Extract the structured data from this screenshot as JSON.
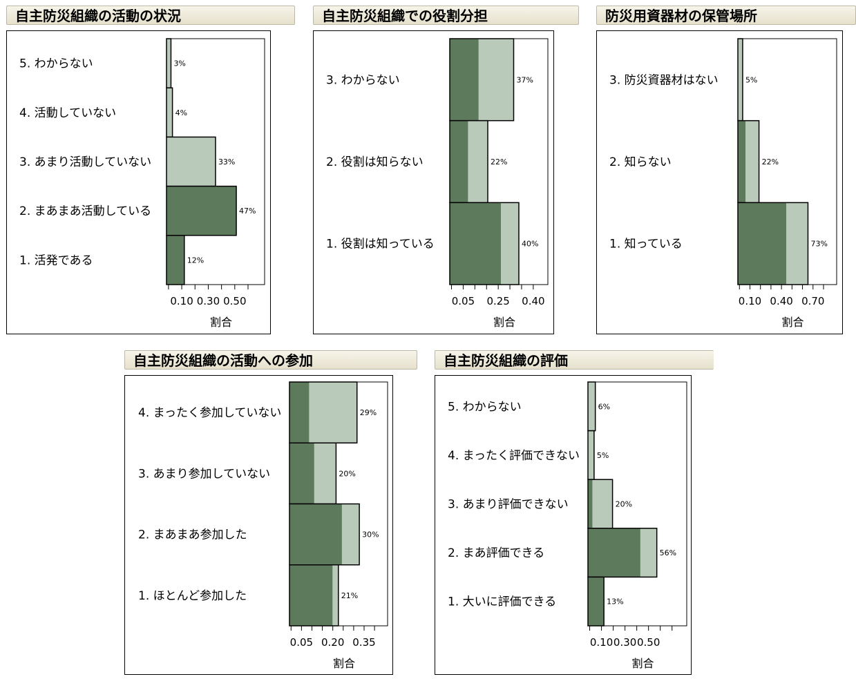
{
  "colors": {
    "dark": "#5e7a5c",
    "light": "#b9c9ba",
    "bar_border": "#000000"
  },
  "chart_data": [
    {
      "type": "bar",
      "title": "自主防災組織の活動の状況",
      "xlabel": "割合",
      "ticks": [
        "0.10",
        "0.30",
        "0.50"
      ],
      "categories": [
        "5. わからない",
        "4. 活動していない",
        "3. あまり活動していない",
        "2. まあまあ活動している",
        "1. 活発である"
      ],
      "values": [
        0.03,
        0.04,
        0.33,
        0.47,
        0.12
      ],
      "value_labels": [
        "3%",
        "4%",
        "33%",
        "47%",
        "12%"
      ],
      "dark_share": [
        0,
        0,
        0,
        1,
        1
      ]
    },
    {
      "type": "bar",
      "title": "自主防災組織での役割分担",
      "xlabel": "割合",
      "ticks": [
        "0.05",
        "0.25",
        "0.40"
      ],
      "categories": [
        "3. わからない",
        "2. 役割は知らない",
        "1. 役割は知っている"
      ],
      "values": [
        0.37,
        0.22,
        0.4
      ],
      "value_labels": [
        "37%",
        "22%",
        "40%"
      ],
      "dark_share": [
        0.45,
        0.48,
        0.74
      ]
    },
    {
      "type": "bar",
      "title": "防災用資器材の保管場所",
      "xlabel": "割合",
      "ticks": [
        "0.10",
        "0.40",
        "0.70"
      ],
      "categories": [
        "3. 防災資器材はない",
        "2. 知らない",
        "1. 知っている"
      ],
      "values": [
        0.05,
        0.22,
        0.73
      ],
      "value_labels": [
        "5%",
        "22%",
        "73%"
      ],
      "dark_share": [
        0,
        0.36,
        0.69
      ]
    },
    {
      "type": "bar",
      "title": "自主防災組織の活動への参加",
      "xlabel": "割合",
      "ticks": [
        "0.05",
        "0.20",
        "0.35"
      ],
      "categories": [
        "4. まったく参加していない",
        "3. あまり参加していない",
        "2. まあまあ参加した",
        "1. ほとんど参加した"
      ],
      "values": [
        0.29,
        0.2,
        0.3,
        0.21
      ],
      "value_labels": [
        "29%",
        "20%",
        "30%",
        "21%"
      ],
      "dark_share": [
        0.29,
        0.53,
        0.75,
        0.88
      ]
    },
    {
      "type": "bar",
      "title": "自主防災組織の評価",
      "xlabel": "割合",
      "ticks": [
        "0.10",
        "0.30",
        "0.50"
      ],
      "categories": [
        "5. わからない",
        "4. まったく評価できない",
        "3. あまり評価できない",
        "2. まあ評価できる",
        "1. 大いに評価できる"
      ],
      "values": [
        0.06,
        0.05,
        0.2,
        0.56,
        0.13
      ],
      "value_labels": [
        "6%",
        "5%",
        "20%",
        "56%",
        "13%"
      ],
      "dark_share": [
        0,
        0,
        0.18,
        0.76,
        1
      ]
    }
  ]
}
